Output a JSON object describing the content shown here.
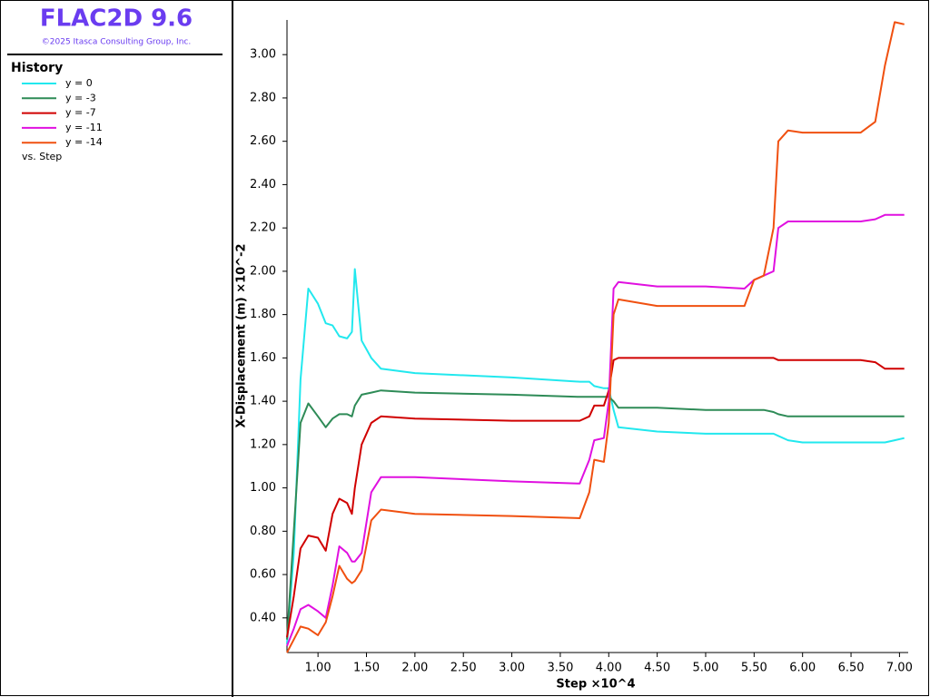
{
  "app_title": "FLAC2D 9.6",
  "copyright": "©2025 Itasca Consulting Group, Inc.",
  "legend_title": "History",
  "legend_footer": "vs. Step",
  "chart_data": {
    "type": "line",
    "xlabel": "Step ×10^4",
    "ylabel": "X-Displacement (m) ×10^-2",
    "x": [
      0.68,
      0.75,
      0.82,
      0.9,
      1.0,
      1.08,
      1.15,
      1.22,
      1.3,
      1.35,
      1.38,
      1.45,
      1.55,
      1.65,
      2.0,
      3.0,
      3.7,
      3.8,
      3.85,
      3.95,
      4.0,
      4.05,
      4.1,
      4.5,
      5.0,
      5.4,
      5.5,
      5.6,
      5.7,
      5.75,
      5.85,
      6.0,
      6.5,
      6.6,
      6.75,
      6.85,
      6.95,
      7.05
    ],
    "series": [
      {
        "name": "y = 0",
        "color": "#22e8ee",
        "values": [
          0.28,
          0.7,
          1.5,
          1.92,
          1.85,
          1.76,
          1.75,
          1.7,
          1.69,
          1.72,
          2.01,
          1.68,
          1.6,
          1.55,
          1.53,
          1.51,
          1.49,
          1.49,
          1.47,
          1.46,
          1.46,
          1.36,
          1.28,
          1.26,
          1.25,
          1.25,
          1.25,
          1.25,
          1.25,
          1.24,
          1.22,
          1.21,
          1.21,
          1.21,
          1.21,
          1.21,
          1.22,
          1.23
        ]
      },
      {
        "name": "y = -3",
        "color": "#2e8b57",
        "values": [
          0.3,
          0.8,
          1.3,
          1.39,
          1.33,
          1.28,
          1.32,
          1.34,
          1.34,
          1.33,
          1.38,
          1.43,
          1.44,
          1.45,
          1.44,
          1.43,
          1.42,
          1.42,
          1.42,
          1.42,
          1.42,
          1.4,
          1.37,
          1.37,
          1.36,
          1.36,
          1.36,
          1.36,
          1.35,
          1.34,
          1.33,
          1.33,
          1.33,
          1.33,
          1.33,
          1.33,
          1.33,
          1.33
        ]
      },
      {
        "name": "y = -7",
        "color": "#d00000",
        "values": [
          0.31,
          0.5,
          0.72,
          0.78,
          0.77,
          0.71,
          0.88,
          0.95,
          0.93,
          0.88,
          1.0,
          1.2,
          1.3,
          1.33,
          1.32,
          1.31,
          1.31,
          1.33,
          1.38,
          1.38,
          1.45,
          1.59,
          1.6,
          1.6,
          1.6,
          1.6,
          1.6,
          1.6,
          1.6,
          1.59,
          1.59,
          1.59,
          1.59,
          1.59,
          1.58,
          1.55,
          1.55,
          1.55
        ]
      },
      {
        "name": "y = -11",
        "color": "#e010e0",
        "values": [
          0.27,
          0.35,
          0.44,
          0.46,
          0.43,
          0.4,
          0.55,
          0.73,
          0.7,
          0.66,
          0.66,
          0.7,
          0.98,
          1.05,
          1.05,
          1.03,
          1.02,
          1.13,
          1.22,
          1.23,
          1.4,
          1.92,
          1.95,
          1.93,
          1.93,
          1.92,
          1.96,
          1.98,
          2.0,
          2.2,
          2.23,
          2.23,
          2.23,
          2.23,
          2.24,
          2.26,
          2.26,
          2.26
        ]
      },
      {
        "name": "y = -14",
        "color": "#f05010",
        "values": [
          0.24,
          0.3,
          0.36,
          0.35,
          0.32,
          0.38,
          0.5,
          0.64,
          0.58,
          0.56,
          0.57,
          0.62,
          0.85,
          0.9,
          0.88,
          0.87,
          0.86,
          0.98,
          1.13,
          1.12,
          1.3,
          1.8,
          1.87,
          1.84,
          1.84,
          1.84,
          1.96,
          1.98,
          2.2,
          2.6,
          2.65,
          2.64,
          2.64,
          2.64,
          2.69,
          2.95,
          3.15,
          3.14
        ]
      }
    ],
    "xlim": [
      0.68,
      7.09
    ],
    "ylim": [
      0.24,
      3.16
    ],
    "xticks": [
      {
        "value": 1,
        "label": "1.00"
      },
      {
        "value": 1.5,
        "label": "1.50"
      },
      {
        "value": 2,
        "label": "2.00"
      },
      {
        "value": 2.5,
        "label": "2.50"
      },
      {
        "value": 3,
        "label": "3.00"
      },
      {
        "value": 3.5,
        "label": "3.50"
      },
      {
        "value": 4,
        "label": "4.00"
      },
      {
        "value": 4.5,
        "label": "4.50"
      },
      {
        "value": 5,
        "label": "5.00"
      },
      {
        "value": 5.5,
        "label": "5.50"
      },
      {
        "value": 6,
        "label": "6.00"
      },
      {
        "value": 6.5,
        "label": "6.50"
      },
      {
        "value": 7,
        "label": "7.00"
      }
    ],
    "yticks": [
      {
        "value": 0.4,
        "label": "0.40"
      },
      {
        "value": 0.6,
        "label": "0.60"
      },
      {
        "value": 0.8,
        "label": "0.80"
      },
      {
        "value": 1,
        "label": "1.00"
      },
      {
        "value": 1.2,
        "label": "1.20"
      },
      {
        "value": 1.4,
        "label": "1.40"
      },
      {
        "value": 1.6,
        "label": "1.60"
      },
      {
        "value": 1.8,
        "label": "1.80"
      },
      {
        "value": 2,
        "label": "2.00"
      },
      {
        "value": 2.2,
        "label": "2.20"
      },
      {
        "value": 2.4,
        "label": "2.40"
      },
      {
        "value": 2.6,
        "label": "2.60"
      },
      {
        "value": 2.8,
        "label": "2.80"
      },
      {
        "value": 3,
        "label": "3.00"
      }
    ]
  }
}
